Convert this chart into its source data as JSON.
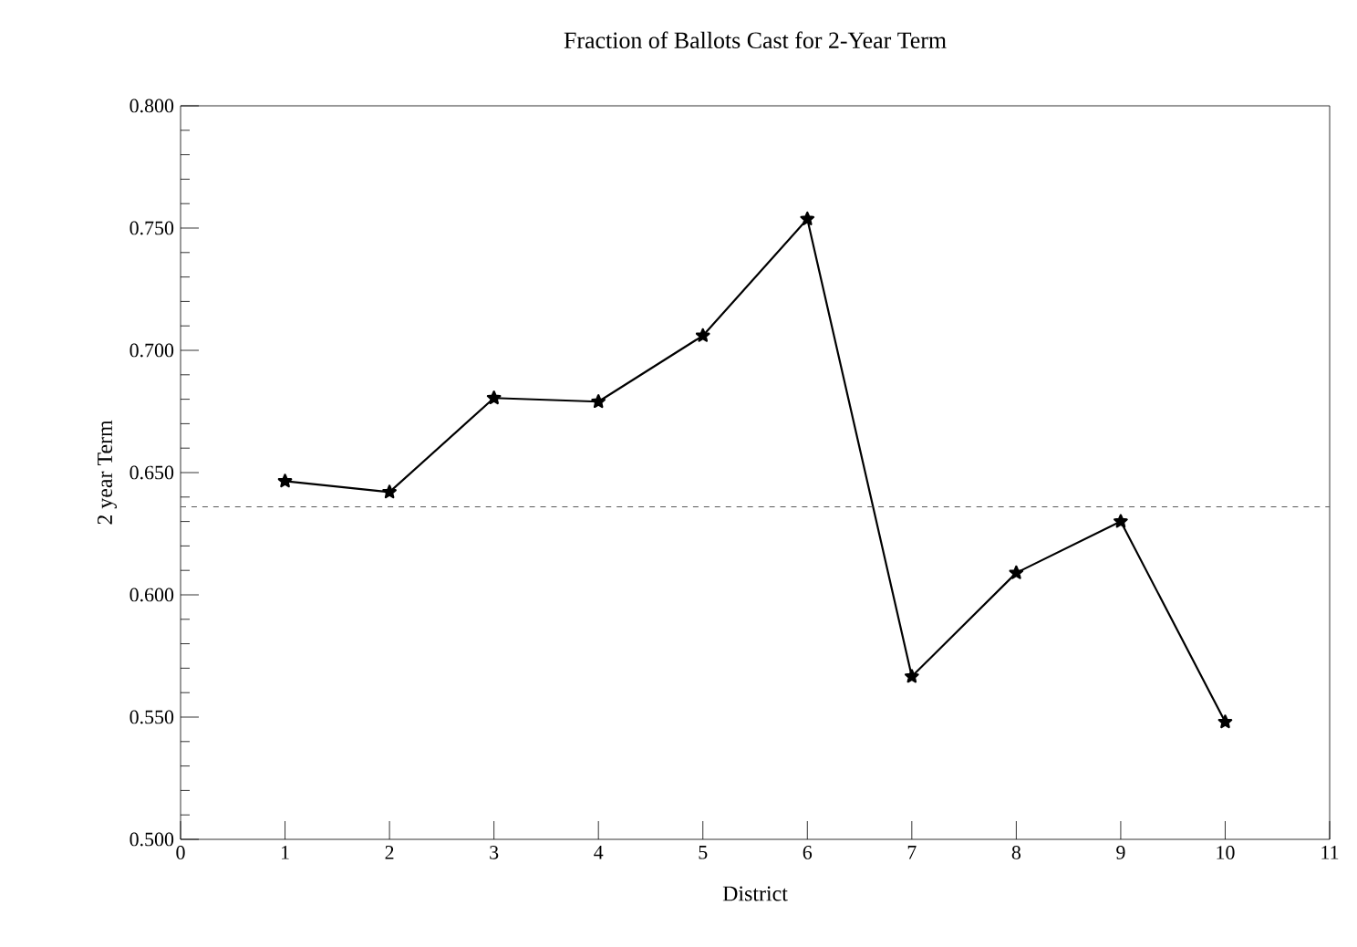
{
  "chart_data": {
    "type": "line",
    "title": "Fraction of Ballots Cast for 2-Year Term",
    "xlabel": "District",
    "ylabel": "2 year Term",
    "x": [
      1,
      2,
      3,
      4,
      5,
      6,
      7,
      8,
      9,
      10
    ],
    "series": [
      {
        "color": "#000000",
        "values": [
          0.6465,
          0.642,
          0.6805,
          0.679,
          0.706,
          0.7537,
          0.5666,
          0.609,
          0.63,
          0.548
        ]
      }
    ],
    "xlim": [
      0,
      11
    ],
    "xticks": [
      0,
      1,
      2,
      3,
      4,
      5,
      6,
      7,
      8,
      9,
      10,
      11
    ],
    "ylim": [
      0.5,
      0.8
    ],
    "yticks": [
      {
        "value": 0.5,
        "label": "0.500"
      },
      {
        "value": 0.55,
        "label": "0.550"
      },
      {
        "value": 0.6,
        "label": "0.600"
      },
      {
        "value": 0.65,
        "label": "0.650"
      },
      {
        "value": 0.7,
        "label": "0.700"
      },
      {
        "value": 0.75,
        "label": "0.750"
      },
      {
        "value": 0.8,
        "label": "0.800"
      }
    ],
    "ref_lines": [
      {
        "axis": "y",
        "value": 0.636,
        "line_style": "dashed"
      }
    ],
    "marker": "star",
    "line_style": "solid"
  }
}
